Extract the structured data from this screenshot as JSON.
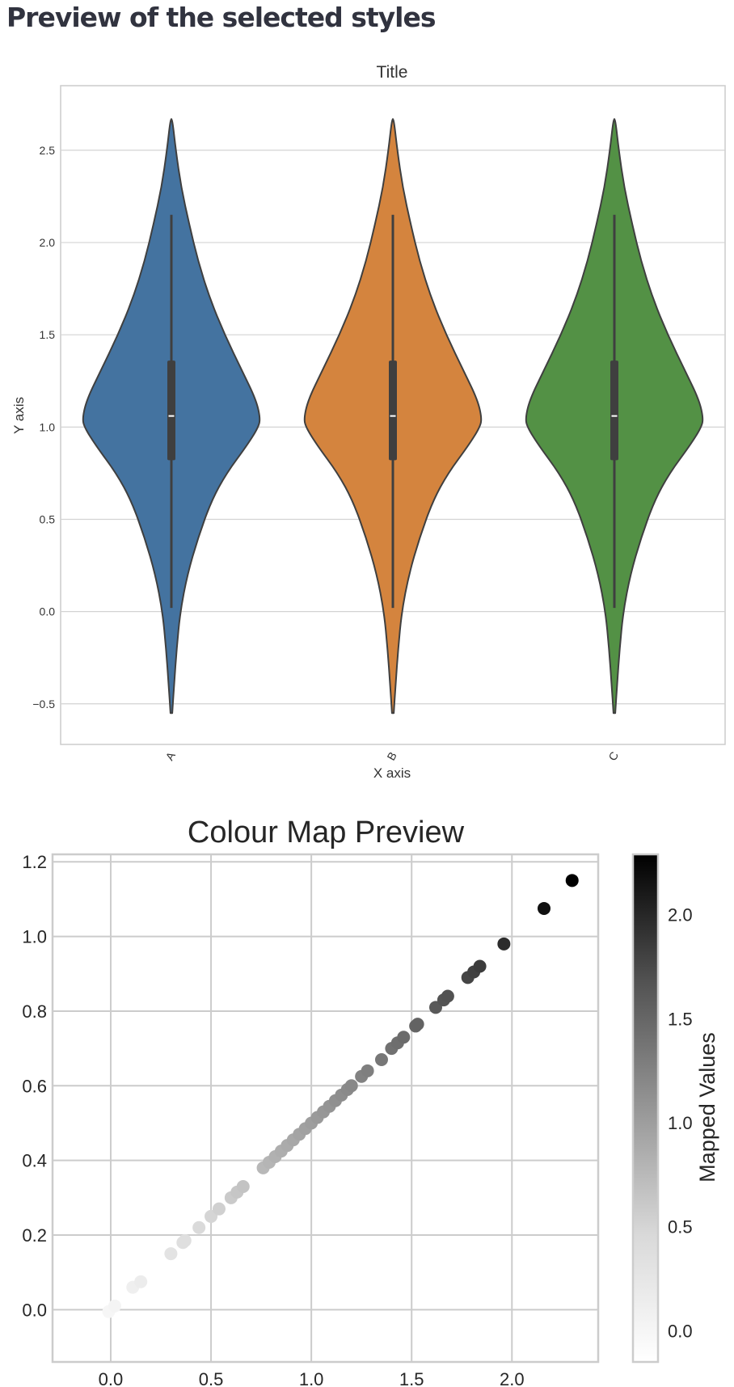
{
  "page": {
    "heading": "Preview of the selected styles"
  },
  "chart_data": [
    {
      "type": "violin",
      "title": "Title",
      "xlabel": "X axis",
      "ylabel": "Y axis",
      "categories": [
        "A",
        "B",
        "C"
      ],
      "colors": [
        "#4473a0",
        "#d4843e",
        "#539145"
      ],
      "ylim": [
        -0.72,
        2.85
      ],
      "yticks": [
        -0.5,
        0.0,
        0.5,
        1.0,
        1.5,
        2.0,
        2.5
      ],
      "ytick_labels": [
        "−0.5",
        "0.0",
        "0.5",
        "1.0",
        "1.5",
        "2.0",
        "2.5"
      ],
      "grid": "horizontal",
      "box": {
        "whisker_low": 0.02,
        "q1": 0.82,
        "median": 1.06,
        "q3": 1.36,
        "whisker_high": 2.15
      },
      "range": [
        -0.55,
        2.67
      ],
      "density_profile": [
        [
          -0.55,
          0.01
        ],
        [
          -0.4,
          0.03
        ],
        [
          -0.2,
          0.06
        ],
        [
          0.0,
          0.1
        ],
        [
          0.2,
          0.18
        ],
        [
          0.4,
          0.3
        ],
        [
          0.6,
          0.45
        ],
        [
          0.75,
          0.62
        ],
        [
          0.9,
          0.85
        ],
        [
          1.0,
          0.98
        ],
        [
          1.05,
          1.0
        ],
        [
          1.15,
          0.95
        ],
        [
          1.3,
          0.8
        ],
        [
          1.5,
          0.6
        ],
        [
          1.7,
          0.43
        ],
        [
          1.9,
          0.3
        ],
        [
          2.1,
          0.2
        ],
        [
          2.3,
          0.11
        ],
        [
          2.5,
          0.05
        ],
        [
          2.67,
          0.01
        ]
      ]
    },
    {
      "type": "scatter",
      "title": "Colour Map Preview",
      "colorbar_label": "Mapped Values",
      "colormap": "Greys",
      "xlim": [
        -0.29,
        2.43
      ],
      "ylim": [
        -0.14,
        1.22
      ],
      "xticks": [
        0.0,
        0.5,
        1.0,
        1.5,
        2.0
      ],
      "xtick_labels": [
        "0.0",
        "0.5",
        "1.0",
        "1.5",
        "2.0"
      ],
      "yticks": [
        0.0,
        0.2,
        0.4,
        0.6,
        0.8,
        1.0,
        1.2
      ],
      "ytick_labels": [
        "0.0",
        "0.2",
        "0.4",
        "0.6",
        "0.8",
        "1.0",
        "1.2"
      ],
      "colorbar_range": [
        -0.15,
        2.29
      ],
      "colorbar_ticks": [
        0.0,
        0.5,
        1.0,
        1.5,
        2.0
      ],
      "colorbar_tick_labels": [
        "0.0",
        "0.5",
        "1.0",
        "1.5",
        "2.0"
      ],
      "grid": true,
      "points": [
        [
          -0.01,
          -0.005
        ],
        [
          0.02,
          0.01
        ],
        [
          0.11,
          0.06
        ],
        [
          0.15,
          0.075
        ],
        [
          0.3,
          0.15
        ],
        [
          0.36,
          0.18
        ],
        [
          0.37,
          0.185
        ],
        [
          0.44,
          0.22
        ],
        [
          0.5,
          0.25
        ],
        [
          0.54,
          0.27
        ],
        [
          0.6,
          0.3
        ],
        [
          0.63,
          0.315
        ],
        [
          0.66,
          0.33
        ],
        [
          0.76,
          0.38
        ],
        [
          0.79,
          0.395
        ],
        [
          0.82,
          0.41
        ],
        [
          0.85,
          0.425
        ],
        [
          0.88,
          0.44
        ],
        [
          0.91,
          0.455
        ],
        [
          0.94,
          0.47
        ],
        [
          0.97,
          0.485
        ],
        [
          1.0,
          0.5
        ],
        [
          1.03,
          0.515
        ],
        [
          1.06,
          0.53
        ],
        [
          1.09,
          0.545
        ],
        [
          1.12,
          0.56
        ],
        [
          1.15,
          0.575
        ],
        [
          1.18,
          0.59
        ],
        [
          1.2,
          0.6
        ],
        [
          1.25,
          0.625
        ],
        [
          1.28,
          0.64
        ],
        [
          1.35,
          0.67
        ],
        [
          1.4,
          0.7
        ],
        [
          1.43,
          0.715
        ],
        [
          1.46,
          0.73
        ],
        [
          1.52,
          0.76
        ],
        [
          1.53,
          0.765
        ],
        [
          1.62,
          0.81
        ],
        [
          1.66,
          0.83
        ],
        [
          1.68,
          0.84
        ],
        [
          1.78,
          0.89
        ],
        [
          1.81,
          0.905
        ],
        [
          1.84,
          0.92
        ],
        [
          1.96,
          0.98
        ],
        [
          2.16,
          1.075
        ],
        [
          2.3,
          1.15
        ]
      ]
    }
  ]
}
